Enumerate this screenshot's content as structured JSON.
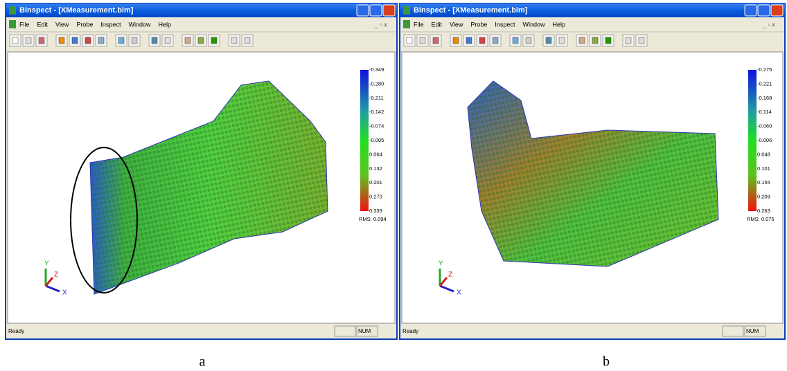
{
  "windows": [
    {
      "title": "BInspect - [XMeasurement.bim]",
      "menu": [
        "File",
        "Edit",
        "View",
        "Probe",
        "Inspect",
        "Window",
        "Help"
      ],
      "legend": [
        "-0.349",
        "-0.280",
        "-0.211",
        "-0.142",
        "-0.074",
        "-0.005",
        "0.064",
        "0.132",
        "0.201",
        "0.270",
        "0.339"
      ],
      "rms": "RMS: 0.094",
      "axes": [
        "Y",
        "Z",
        "X"
      ],
      "status": "Ready",
      "indicator": "NUM",
      "caption": "a"
    },
    {
      "title": "BInspect - [XMeasurement.bim]",
      "menu": [
        "File",
        "Edit",
        "View",
        "Probe",
        "Inspect",
        "Window",
        "Help"
      ],
      "legend": [
        "-0.275",
        "-0.221",
        "-0.168",
        "-0.114",
        "-0.060",
        "-0.006",
        "0.048",
        "0.101",
        "0.155",
        "0.209",
        "0.263"
      ],
      "rms": "RMS: 0.075",
      "axes": [
        "Y",
        "Z",
        "X"
      ],
      "status": "Ready",
      "indicator": "NUM",
      "caption": "b"
    }
  ]
}
